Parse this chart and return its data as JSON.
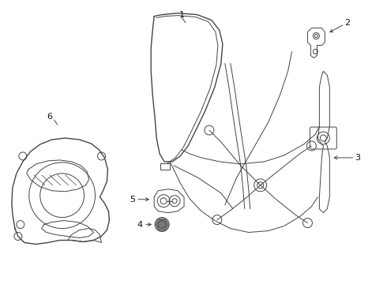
{
  "background_color": "#ffffff",
  "line_color": "#444444",
  "label_color": "#111111",
  "fig_width": 4.9,
  "fig_height": 3.6,
  "dpi": 100
}
